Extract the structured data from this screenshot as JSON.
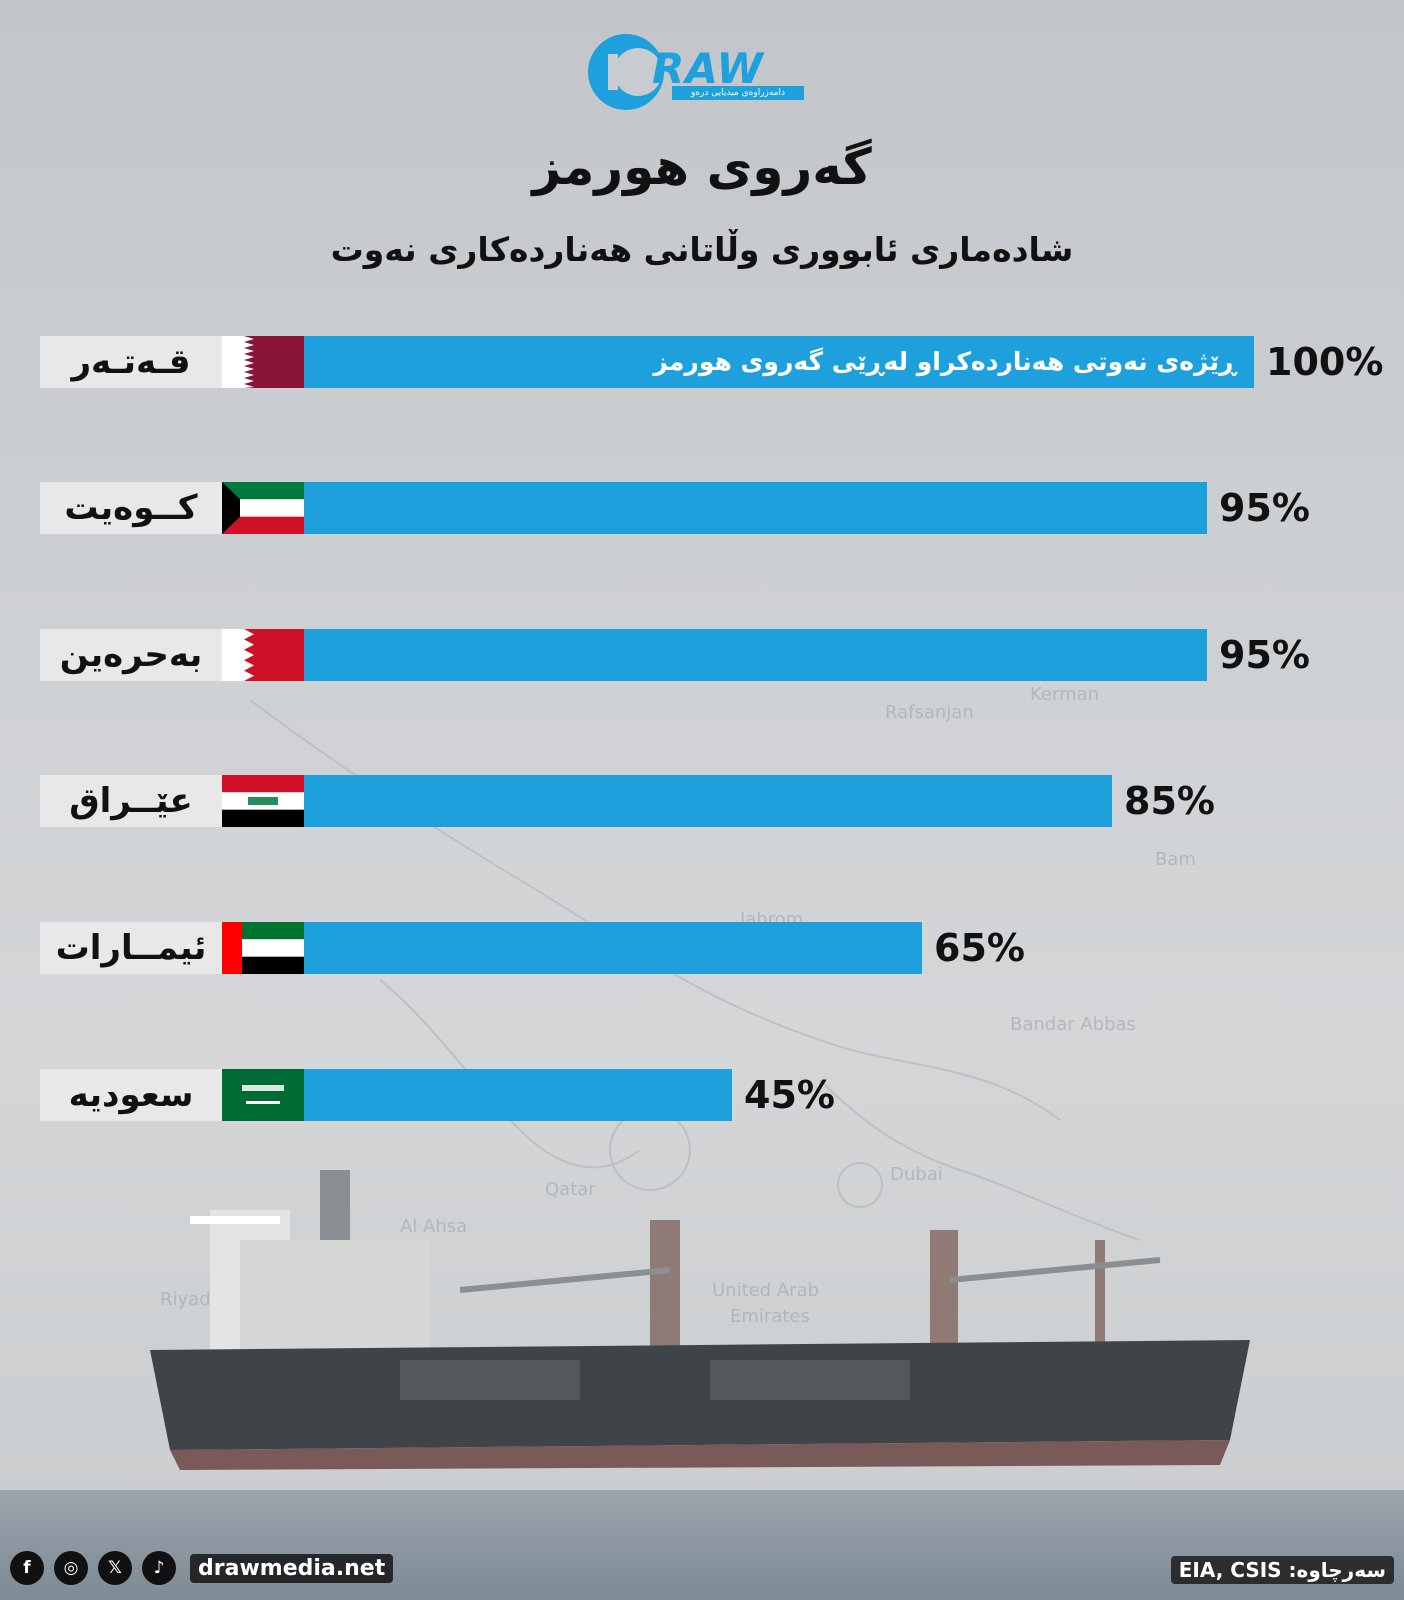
{
  "header": {
    "logo_text": "RAW",
    "logo_tagline": "دامەزراوەی میدیایی درەو",
    "title": "گەروی هورمز",
    "subtitle": "شادەماری ئابووری وڵاتانی هەناردەکاری نەوت"
  },
  "chart_data": {
    "type": "bar",
    "orientation": "horizontal",
    "title": "گەروی هورمز",
    "subtitle": "شادەماری ئابووری وڵاتانی هەناردەکاری نەوت",
    "series_label": "ڕێژەی نەوتی هەناردەکراو لەڕێی گەروی هورمز",
    "categories": [
      "قـەتـەر",
      "کــوەیت",
      "بەحرەین",
      "عێــراق",
      "ئیمــارات",
      "سعودیە"
    ],
    "values": [
      100,
      95,
      95,
      85,
      65,
      45
    ],
    "value_labels": [
      "100%",
      "95%",
      "95%",
      "85%",
      "65%",
      "45%"
    ],
    "flags": [
      "qatar",
      "kuwait",
      "bahrain",
      "iraq",
      "uae",
      "saudi"
    ],
    "xlim": [
      0,
      100
    ],
    "bar_color": "#1ea0dc"
  },
  "footer": {
    "social": [
      "f",
      "◎",
      "𝕏",
      "♪"
    ],
    "website": "drawmedia.net",
    "source": "سەرچاوە: EIA, CSIS"
  }
}
